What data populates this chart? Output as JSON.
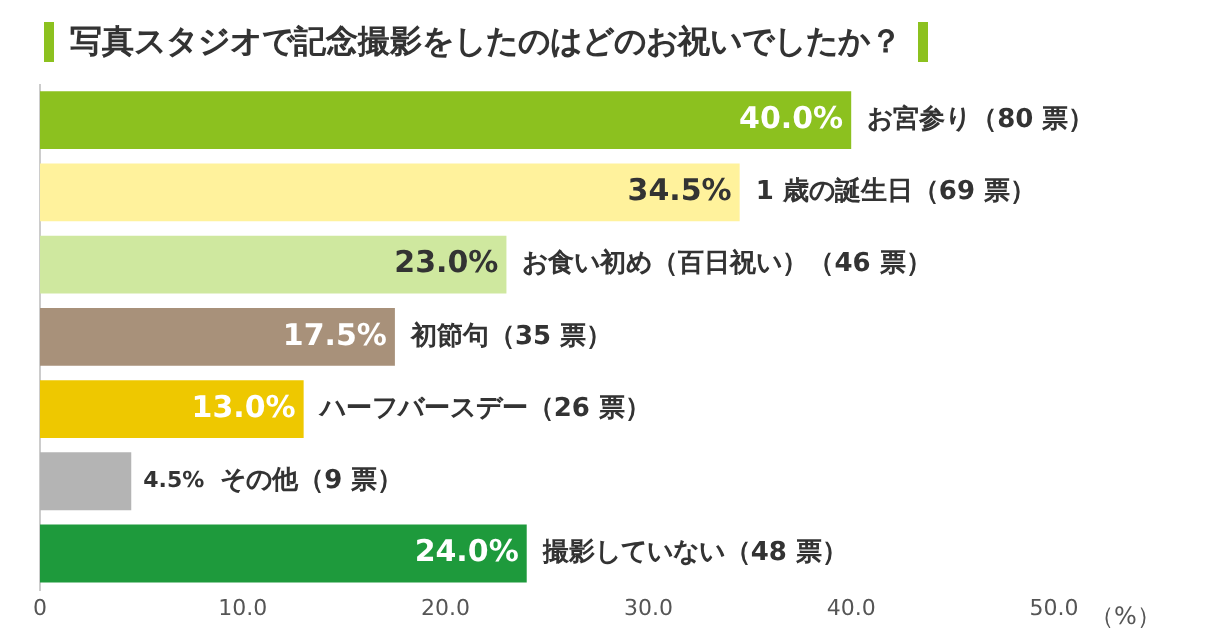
{
  "chart_data": {
    "type": "bar",
    "orientation": "horizontal",
    "title": "写真スタジオで記念撮影をしたのはどのお祝いでしたか？",
    "xlabel": "（%）",
    "categories": [
      "お宮参り（80 票）",
      "1 歳の誕生日（69 票）",
      "お食い初め（百日祝い）（46 票）",
      "初節句（35 票）",
      "ハーフバースデー（26 票）",
      "その他（9 票）",
      "撮影していない（48 票）"
    ],
    "values": [
      40.0,
      34.5,
      23.0,
      17.5,
      13.0,
      4.5,
      24.0
    ],
    "colors": [
      "#8cc11f",
      "#fff29c",
      "#cfe89f",
      "#a8917a",
      "#eec800",
      "#b4b4b4",
      "#1e9a3c"
    ],
    "value_labels": [
      "40.0%",
      "34.5%",
      "23.0%",
      "17.5%",
      "13.0%",
      "4.5%",
      "24.0%"
    ],
    "xlim": [
      0,
      50
    ],
    "xticks": [
      0,
      {
        "value": 10,
        "label": "10.0"
      },
      {
        "value": 20,
        "label": "20.0"
      },
      {
        "value": 30,
        "label": "30.0"
      },
      {
        "value": 40,
        "label": "40.0"
      },
      {
        "value": 50,
        "label": "50.0"
      }
    ],
    "grid": false,
    "legend": false
  }
}
